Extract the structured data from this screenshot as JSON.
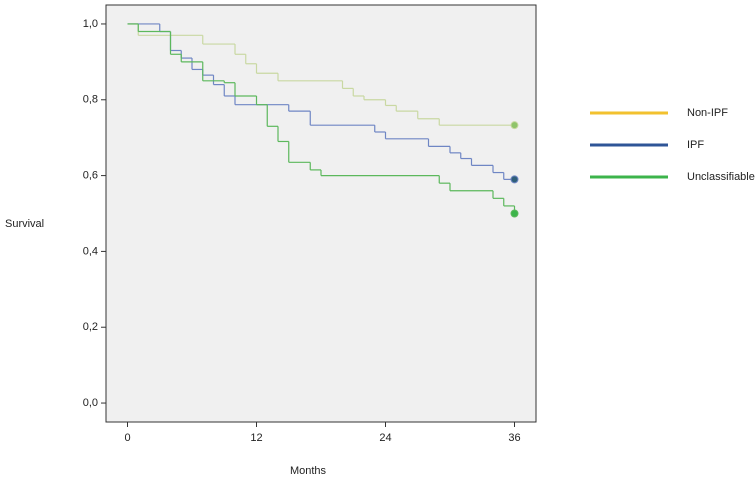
{
  "chart_data": {
    "type": "step",
    "xlabel": "Months",
    "ylabel": "Survival",
    "xlim": [
      -2,
      38
    ],
    "ylim": [
      -0.05,
      1.05
    ],
    "xticks": [
      0,
      12,
      24,
      36
    ],
    "yticks": [
      {
        "value": 0,
        "label": "0,0"
      },
      {
        "value": 0.2,
        "label": "0,2"
      },
      {
        "value": 0.4,
        "label": "0,4"
      },
      {
        "value": 0.6,
        "label": "0,6"
      },
      {
        "value": 0.8,
        "label": "0,8"
      },
      {
        "value": 1,
        "label": "1,0"
      }
    ],
    "legend": "right",
    "series": [
      {
        "name": "Non-IPF",
        "color": "#f2c12e",
        "line_color": "#c9d8a2",
        "marker_color": "#8fc46a",
        "x": [
          0,
          1,
          7,
          10,
          11,
          12,
          14,
          20,
          21,
          22,
          24,
          25,
          27,
          29,
          36
        ],
        "values": [
          1.0,
          0.97,
          0.947,
          0.92,
          0.895,
          0.87,
          0.85,
          0.83,
          0.81,
          0.8,
          0.785,
          0.77,
          0.75,
          0.733,
          0.733
        ]
      },
      {
        "name": "IPF",
        "color": "#2f5597",
        "line_color": "#6f86c4",
        "marker_color": "#2f5f7a",
        "x": [
          0,
          3,
          4,
          5,
          6,
          7,
          8,
          9,
          10,
          15,
          17,
          23,
          24,
          28,
          30,
          31,
          32,
          34,
          35,
          36
        ],
        "values": [
          1.0,
          0.98,
          0.93,
          0.91,
          0.88,
          0.865,
          0.84,
          0.81,
          0.787,
          0.77,
          0.733,
          0.715,
          0.697,
          0.677,
          0.66,
          0.645,
          0.627,
          0.608,
          0.59,
          0.59
        ]
      },
      {
        "name": "Unclassifiable",
        "color": "#3cb44b",
        "line_color": "#5cb85c",
        "marker_color": "#3cb44b",
        "x": [
          0,
          1,
          4,
          5,
          7,
          9,
          10,
          12,
          13,
          14,
          15,
          17,
          18,
          29,
          30,
          34,
          35,
          36
        ],
        "values": [
          1.0,
          0.98,
          0.92,
          0.9,
          0.85,
          0.845,
          0.81,
          0.787,
          0.73,
          0.69,
          0.635,
          0.615,
          0.6,
          0.58,
          0.56,
          0.54,
          0.52,
          0.5
        ]
      }
    ]
  }
}
